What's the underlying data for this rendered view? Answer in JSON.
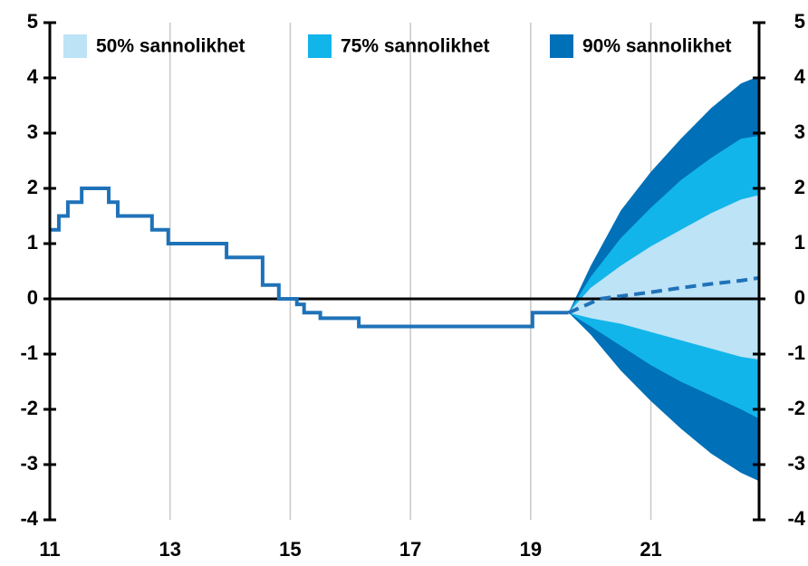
{
  "chart_data": {
    "type": "fan",
    "xlim": [
      11,
      22.8
    ],
    "xticks": [
      11,
      13,
      15,
      17,
      19,
      21
    ],
    "ylim": [
      -4,
      5
    ],
    "yticks": [
      -4,
      -3,
      -2,
      -1,
      0,
      1,
      2,
      3,
      4,
      5
    ],
    "y2lim": [
      -4,
      5
    ],
    "y2ticks": [
      -4,
      -3,
      -2,
      -1,
      0,
      1,
      2,
      3,
      4,
      5
    ],
    "grid": true,
    "legend": "top",
    "series": [
      {
        "kind": "step",
        "color": "#1f72b8",
        "x": [
          11,
          11.15,
          11.3,
          11.53,
          11.98,
          12.13,
          12.7,
          12.97,
          13.94,
          14.54,
          14.81,
          15.11,
          15.23,
          15.5,
          16.14,
          19.03,
          19.63
        ],
        "values": [
          1.25,
          1.5,
          1.75,
          2,
          1.75,
          1.5,
          1.25,
          1,
          0.75,
          0.25,
          0,
          -0.1,
          -0.25,
          -0.35,
          -0.5,
          -0.25,
          -0.25
        ]
      },
      {
        "kind": "dashed",
        "color": "#1f72b8",
        "x": [
          19.63,
          19.95,
          20.15,
          20.5,
          21,
          21.5,
          22,
          22.5,
          22.8
        ],
        "values": [
          -0.25,
          -0.1,
          0,
          0.05,
          0.12,
          0.2,
          0.27,
          0.33,
          0.38
        ]
      }
    ],
    "bands": [
      {
        "name": "90% sannolikhet",
        "color": "#0070b8",
        "x": [
          19.63,
          20,
          20.5,
          21,
          21.5,
          22,
          22.5,
          22.8
        ],
        "upper": [
          -0.25,
          0.6,
          1.6,
          2.3,
          2.9,
          3.45,
          3.9,
          4.03
        ],
        "lower": [
          -0.25,
          -0.65,
          -1.3,
          -1.85,
          -2.35,
          -2.8,
          -3.15,
          -3.3
        ]
      },
      {
        "name": "75% sannolikhet",
        "color": "#12b5ea",
        "x": [
          19.63,
          20,
          20.5,
          21,
          21.5,
          22,
          22.5,
          22.8
        ],
        "upper": [
          -0.25,
          0.4,
          1.1,
          1.65,
          2.15,
          2.55,
          2.9,
          2.95
        ],
        "lower": [
          -0.25,
          -0.5,
          -0.85,
          -1.2,
          -1.5,
          -1.75,
          -2.0,
          -2.17
        ]
      },
      {
        "name": "50% sannolikhet",
        "color": "#bde3f7",
        "x": [
          19.63,
          20,
          20.5,
          21,
          21.5,
          22,
          22.5,
          22.8
        ],
        "upper": [
          -0.25,
          0.2,
          0.6,
          0.95,
          1.25,
          1.55,
          1.8,
          1.88
        ],
        "lower": [
          -0.25,
          -0.35,
          -0.45,
          -0.6,
          -0.75,
          -0.9,
          -1.05,
          -1.1
        ]
      }
    ]
  }
}
